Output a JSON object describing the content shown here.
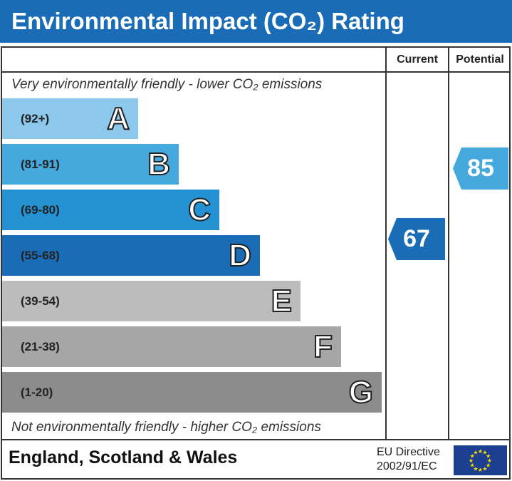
{
  "title": "Environmental Impact (CO₂) Rating",
  "columns": {
    "current": "Current",
    "potential": "Potential"
  },
  "top_note": "Very environmentally friendly - lower CO₂ emissions",
  "bottom_note": "Not environmentally friendly - higher CO₂ emissions",
  "chart_data": {
    "type": "bar",
    "bands": [
      {
        "letter": "A",
        "range": "(92+)",
        "color": "#8cc8eb"
      },
      {
        "letter": "B",
        "range": "(81-91)",
        "color": "#45a9de"
      },
      {
        "letter": "C",
        "range": "(69-80)",
        "color": "#2492d2"
      },
      {
        "letter": "D",
        "range": "(55-68)",
        "color": "#1b6cb7"
      },
      {
        "letter": "E",
        "range": "(39-54)",
        "color": "#bcbcbc"
      },
      {
        "letter": "F",
        "range": "(21-38)",
        "color": "#a6a6a6"
      },
      {
        "letter": "G",
        "range": "(1-20)",
        "color": "#8c8c8c"
      }
    ],
    "current": {
      "value": "67",
      "band": "D",
      "color": "#1b6cb7"
    },
    "potential": {
      "value": "85",
      "band": "B",
      "color": "#45a9de"
    }
  },
  "footer": {
    "region": "England, Scotland & Wales",
    "directive_line1": "EU Directive",
    "directive_line2": "2002/91/EC"
  }
}
